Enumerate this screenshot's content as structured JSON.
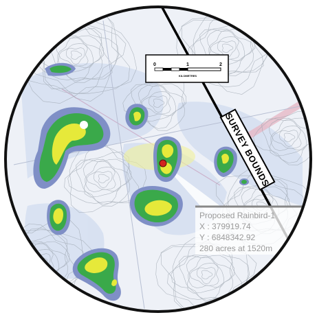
{
  "scale_bar": {
    "ticks": [
      "0",
      "1",
      "2"
    ],
    "unit": "KILOMETRES"
  },
  "survey_bounds_label": "SURVEY BOUNDS",
  "well": {
    "name": "Proposed Rainbird-1",
    "x_line": "X : 379919.74",
    "y_line": "Y : 6848342.92",
    "area_line": "280 acres at 1520m"
  },
  "colors": {
    "map_background": "#eef1f7",
    "anomaly_outer": "#7f8fc6",
    "anomaly_mid": "#3aa94a",
    "anomaly_core": "#e6e93a",
    "well_marker": "#d2241f",
    "bounds_line": "#000000",
    "frame": "#111111"
  },
  "icons": {
    "well": "well-location-icon"
  }
}
